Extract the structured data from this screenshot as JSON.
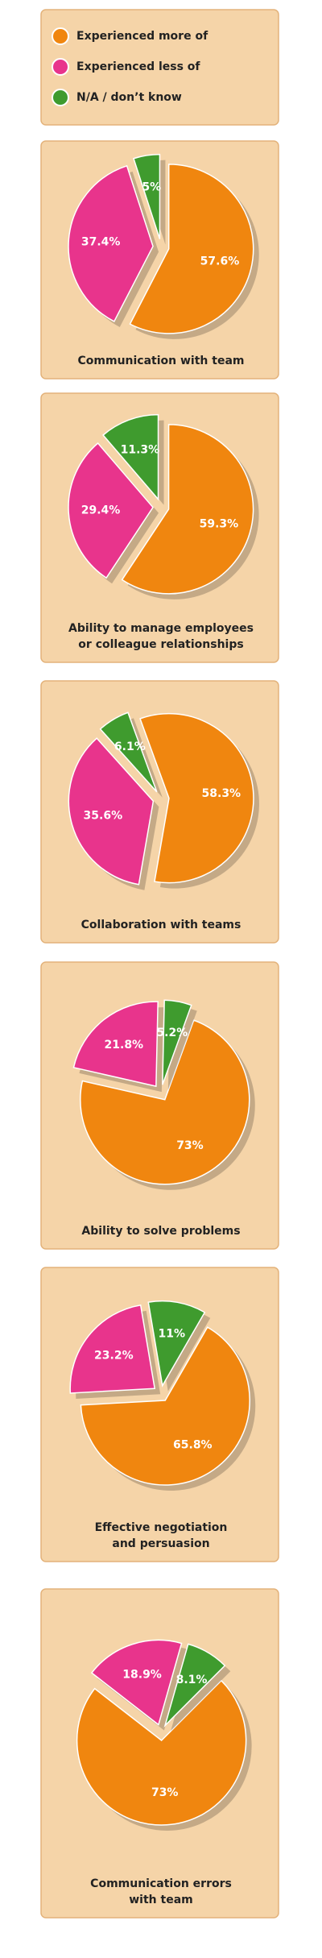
{
  "legend": [
    {
      "name": "Experienced more of",
      "color": "#f0860f"
    },
    {
      "name": "Experienced less of",
      "color": "#e8348c"
    },
    {
      "name": "N/A / don’t know",
      "color": "#3f9b2e"
    }
  ],
  "chart_data": [
    {
      "type": "pie",
      "title": [
        "Communication with team"
      ],
      "values": [
        57.6,
        37.4,
        5
      ],
      "value_labels": [
        "57.6%",
        "37.4%",
        "5%"
      ]
    },
    {
      "type": "pie",
      "title": [
        "Ability to manage employees",
        "or colleague relationships"
      ],
      "values": [
        59.3,
        29.4,
        11.3
      ],
      "value_labels": [
        "59.3%",
        "29.4%",
        "11.3%"
      ]
    },
    {
      "type": "pie",
      "title": [
        "Collaboration with teams"
      ],
      "values": [
        58.3,
        35.6,
        6.1
      ],
      "value_labels": [
        "58.3%",
        "35.6%",
        "6.1%"
      ]
    },
    {
      "type": "pie",
      "title": [
        "Ability to solve problems"
      ],
      "values": [
        73,
        21.8,
        5.2
      ],
      "value_labels": [
        "73%",
        "21.8%",
        "5.2%"
      ]
    },
    {
      "type": "pie",
      "title": [
        "Effective negotiation",
        "and persuasion"
      ],
      "values": [
        65.8,
        23.2,
        11
      ],
      "value_labels": [
        "65.8%",
        "23.2%",
        "11%"
      ]
    },
    {
      "type": "pie",
      "title": [
        "Communication errors",
        "with team"
      ],
      "values": [
        73,
        18.9,
        8.1
      ],
      "value_labels": [
        "73%",
        "18.9%",
        "8.1%"
      ]
    }
  ]
}
